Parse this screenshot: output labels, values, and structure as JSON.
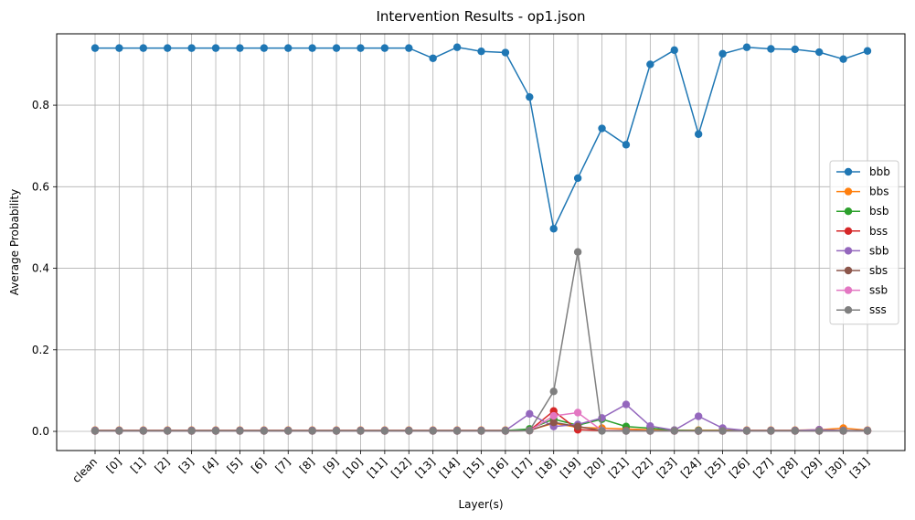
{
  "chart_data": {
    "type": "line",
    "title": "Intervention Results - op1.json",
    "xlabel": "Layer(s)",
    "ylabel": "Average Probability",
    "ylim": [
      -0.047,
      0.975
    ],
    "yticks": [
      0.0,
      0.2,
      0.4,
      0.6,
      0.8
    ],
    "ytick_labels": [
      "0.0",
      "0.2",
      "0.4",
      "0.6",
      "0.8"
    ],
    "grid": true,
    "legend_position": "center-right",
    "categories": [
      "clean",
      "[0]",
      "[1]",
      "[2]",
      "[3]",
      "[4]",
      "[5]",
      "[6]",
      "[7]",
      "[8]",
      "[9]",
      "[10]",
      "[11]",
      "[12]",
      "[13]",
      "[14]",
      "[15]",
      "[16]",
      "[17]",
      "[18]",
      "[19]",
      "[20]",
      "[21]",
      "[22]",
      "[23]",
      "[24]",
      "[25]",
      "[26]",
      "[27]",
      "[28]",
      "[29]",
      "[30]",
      "[31]"
    ],
    "series": [
      {
        "name": "bbb",
        "color": "#1f77b4",
        "values": [
          0.94,
          0.94,
          0.94,
          0.94,
          0.94,
          0.94,
          0.94,
          0.94,
          0.94,
          0.94,
          0.94,
          0.94,
          0.94,
          0.94,
          0.915,
          0.942,
          0.932,
          0.929,
          0.82,
          0.497,
          0.621,
          0.743,
          0.703,
          0.9,
          0.935,
          0.729,
          0.926,
          0.942,
          0.938,
          0.937,
          0.93,
          0.913,
          0.933
        ]
      },
      {
        "name": "bbs",
        "color": "#ff7f0e",
        "values": [
          0.003,
          0.003,
          0.003,
          0.003,
          0.003,
          0.003,
          0.003,
          0.003,
          0.003,
          0.003,
          0.003,
          0.003,
          0.003,
          0.003,
          0.003,
          0.003,
          0.003,
          0.003,
          0.003,
          0.02,
          0.01,
          0.008,
          0.006,
          0.004,
          0.003,
          0.003,
          0.003,
          0.003,
          0.003,
          0.003,
          0.004,
          0.008,
          0.003
        ]
      },
      {
        "name": "bsb",
        "color": "#2ca02c",
        "values": [
          0.002,
          0.002,
          0.002,
          0.002,
          0.002,
          0.002,
          0.002,
          0.002,
          0.002,
          0.002,
          0.002,
          0.002,
          0.002,
          0.002,
          0.002,
          0.002,
          0.002,
          0.002,
          0.006,
          0.03,
          0.015,
          0.03,
          0.012,
          0.008,
          0.003,
          0.002,
          0.002,
          0.002,
          0.002,
          0.002,
          0.002,
          0.002,
          0.002
        ]
      },
      {
        "name": "bss",
        "color": "#d62728",
        "values": [
          0.001,
          0.001,
          0.001,
          0.001,
          0.001,
          0.001,
          0.001,
          0.001,
          0.001,
          0.001,
          0.001,
          0.001,
          0.001,
          0.001,
          0.001,
          0.001,
          0.001,
          0.001,
          0.002,
          0.05,
          0.004,
          0.002,
          0.002,
          0.001,
          0.001,
          0.001,
          0.001,
          0.001,
          0.001,
          0.001,
          0.001,
          0.001,
          0.001
        ]
      },
      {
        "name": "sbb",
        "color": "#9467bd",
        "values": [
          0.002,
          0.002,
          0.002,
          0.002,
          0.002,
          0.002,
          0.002,
          0.002,
          0.002,
          0.002,
          0.002,
          0.002,
          0.002,
          0.002,
          0.002,
          0.002,
          0.002,
          0.002,
          0.043,
          0.012,
          0.017,
          0.033,
          0.066,
          0.013,
          0.003,
          0.037,
          0.008,
          0.002,
          0.002,
          0.002,
          0.004,
          0.002,
          0.002
        ]
      },
      {
        "name": "sbs",
        "color": "#8c564b",
        "values": [
          0.001,
          0.001,
          0.001,
          0.001,
          0.001,
          0.001,
          0.001,
          0.001,
          0.001,
          0.001,
          0.001,
          0.001,
          0.001,
          0.001,
          0.001,
          0.001,
          0.001,
          0.001,
          0.002,
          0.022,
          0.012,
          0.002,
          0.001,
          0.001,
          0.001,
          0.001,
          0.001,
          0.001,
          0.001,
          0.001,
          0.001,
          0.001,
          0.001
        ]
      },
      {
        "name": "ssb",
        "color": "#e377c2",
        "values": [
          0.001,
          0.001,
          0.001,
          0.001,
          0.001,
          0.001,
          0.001,
          0.001,
          0.001,
          0.001,
          0.001,
          0.001,
          0.001,
          0.001,
          0.001,
          0.001,
          0.001,
          0.001,
          0.002,
          0.038,
          0.046,
          0.002,
          0.001,
          0.001,
          0.001,
          0.001,
          0.001,
          0.001,
          0.001,
          0.001,
          0.001,
          0.001,
          0.001
        ]
      },
      {
        "name": "sss",
        "color": "#7f7f7f",
        "values": [
          0.001,
          0.001,
          0.001,
          0.001,
          0.001,
          0.001,
          0.001,
          0.001,
          0.001,
          0.001,
          0.001,
          0.001,
          0.001,
          0.001,
          0.001,
          0.001,
          0.001,
          0.001,
          0.002,
          0.098,
          0.44,
          0.001,
          0.001,
          0.001,
          0.001,
          0.001,
          0.001,
          0.001,
          0.001,
          0.001,
          0.001,
          0.001,
          0.001
        ]
      }
    ]
  }
}
